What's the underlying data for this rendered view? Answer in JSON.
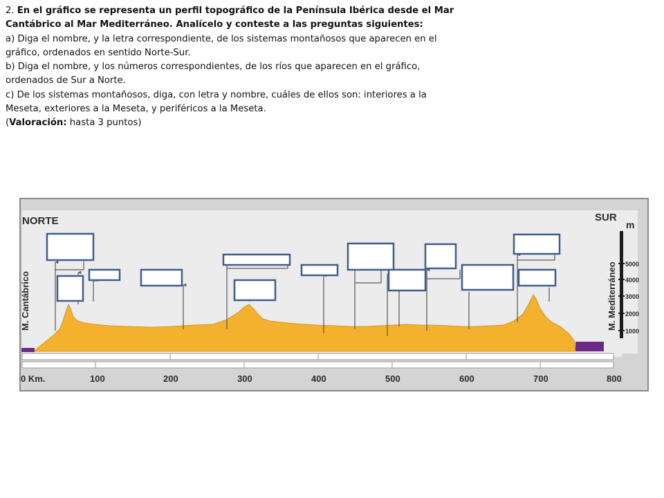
{
  "question": {
    "line1_prefix": "2. ",
    "line1_bold": "En el gráfico se representa un perfil topográfico de la Península Ibérica desde el Mar",
    "line2_bold": "Cantábrico al Mar Mediterráneo. Analícelo y conteste a las preguntas siguientes:",
    "line3": "a) Diga el nombre, y la letra correspondiente, de los sistemas montañosos que aparecen en el",
    "line4": "gráfico, ordenados en sentido Norte-Sur.",
    "line5": "b) Diga el nombre, y los números correspondientes, de los ríos que aparecen en el gráfico,",
    "line6": "ordenados de Sur a Norte.",
    "line7": "c) De los sistemas montañosos, diga, con letra y nombre, cuáles de ellos son: interiores a la",
    "line8": "Meseta, exteriores a la Meseta, y periféricos a la Meseta.",
    "line9_open": "(",
    "line9_bold": "Valoración:",
    "line9_rest": " hasta 3 puntos)"
  },
  "profile": {
    "north_label": "NORTE",
    "south_label": "SUR",
    "north_sea_label": "M. Cantábrico",
    "south_sea_label": "M. Mediterráneo",
    "elevation_unit": "m",
    "elevation_ticks": [
      "5000",
      "4000",
      "3000",
      "2000",
      "1000"
    ],
    "distance_ticks": [
      "0 Km.",
      "100",
      "200",
      "300",
      "400",
      "500",
      "600",
      "700",
      "800"
    ],
    "colors": {
      "terrain": "#f3b12e",
      "sea": "#6a2a86",
      "answer_box_border": "#3d5e8c",
      "scale_bar": "#1c1c1c"
    }
  }
}
